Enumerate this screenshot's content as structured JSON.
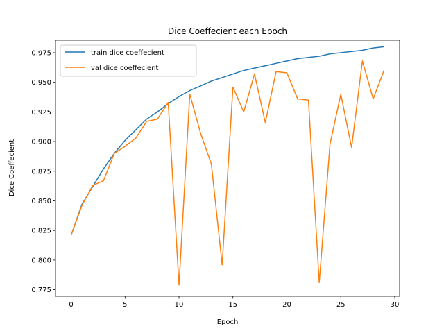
{
  "chart_data": {
    "type": "line",
    "title": "Dice Coeffecient each Epoch",
    "xlabel": "Epoch",
    "ylabel": "Dice Coeffecient",
    "xlim": [
      -1.45,
      30.45
    ],
    "ylim": [
      0.7695,
      0.9855
    ],
    "xticks": [
      0,
      5,
      10,
      15,
      20,
      25,
      30
    ],
    "xtick_labels": [
      "0",
      "5",
      "10",
      "15",
      "20",
      "25",
      "30"
    ],
    "yticks": [
      0.775,
      0.8,
      0.825,
      0.85,
      0.875,
      0.9,
      0.925,
      0.95,
      0.975
    ],
    "ytick_labels": [
      "0.775",
      "0.800",
      "0.825",
      "0.850",
      "0.875",
      "0.900",
      "0.925",
      "0.950",
      "0.975"
    ],
    "grid": false,
    "legend_position": "top-left",
    "x": [
      0,
      1,
      2,
      3,
      4,
      5,
      6,
      7,
      8,
      9,
      10,
      11,
      12,
      13,
      14,
      15,
      16,
      17,
      18,
      19,
      20,
      21,
      22,
      23,
      24,
      25,
      26,
      27,
      28,
      29
    ],
    "series": [
      {
        "name": "train dice coeffecient",
        "color": "#1f77b4",
        "values": [
          0.821,
          0.847,
          0.862,
          0.877,
          0.89,
          0.901,
          0.91,
          0.919,
          0.925,
          0.932,
          0.938,
          0.943,
          0.947,
          0.951,
          0.954,
          0.957,
          0.96,
          0.962,
          0.964,
          0.966,
          0.968,
          0.97,
          0.971,
          0.972,
          0.974,
          0.975,
          0.976,
          0.977,
          0.979,
          0.98
        ]
      },
      {
        "name": "val dice coeffecient",
        "color": "#ff7f0e",
        "values": [
          0.821,
          0.846,
          0.863,
          0.867,
          0.89,
          0.896,
          0.903,
          0.917,
          0.919,
          0.933,
          0.779,
          0.94,
          0.907,
          0.881,
          0.796,
          0.946,
          0.925,
          0.957,
          0.916,
          0.959,
          0.958,
          0.936,
          0.935,
          0.781,
          0.898,
          0.94,
          0.895,
          0.968,
          0.936,
          0.96
        ]
      }
    ]
  }
}
